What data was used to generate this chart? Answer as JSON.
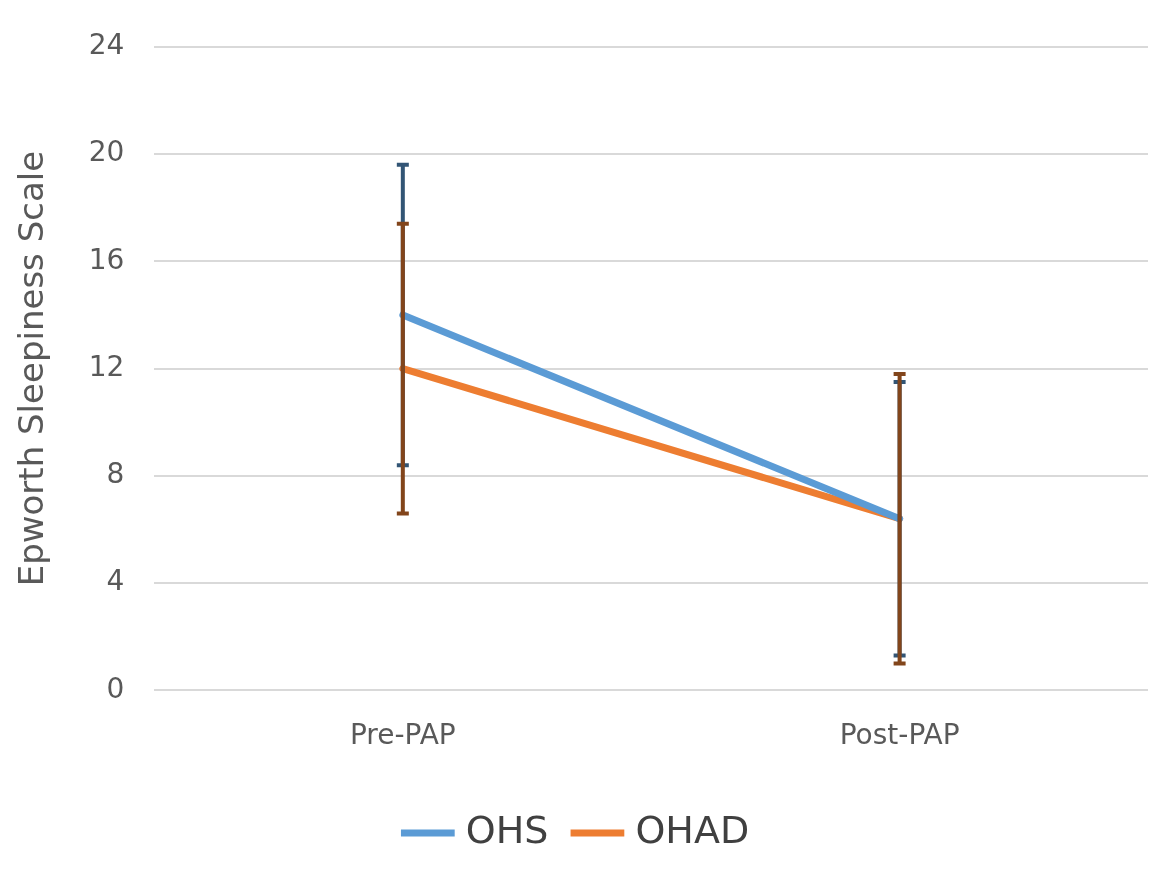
{
  "chart_data": {
    "type": "line",
    "ylabel": "Epworth Sleepiness Scale",
    "categories": [
      "Pre-PAP",
      "Post-PAP"
    ],
    "series": [
      {
        "name": "OHS",
        "color": "#5b9bd5",
        "values": [
          14,
          6.4
        ],
        "errors": [
          5.6,
          5.1
        ]
      },
      {
        "name": "OHAD",
        "color": "#ed7d31",
        "values": [
          12,
          6.4
        ],
        "errors": [
          5.4,
          5.4
        ]
      }
    ],
    "ylim": [
      0,
      24
    ],
    "yticks": [
      0,
      4,
      8,
      12,
      16,
      20,
      24
    ],
    "grid": "y",
    "legend": "bottom",
    "marker": "none",
    "line_style": "solid"
  }
}
